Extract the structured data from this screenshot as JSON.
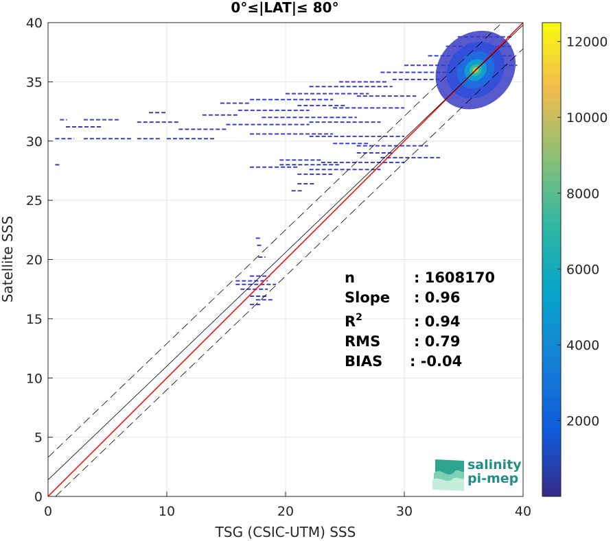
{
  "chart_data": {
    "type": "heatmap",
    "title": "0°≤|LAT|≤ 80°",
    "xlabel": "TSG (CSIC-UTM) SSS",
    "ylabel": "Satellite SSS",
    "xlim": [
      0,
      40
    ],
    "ylim": [
      0,
      40
    ],
    "xticks": [
      "0",
      "10",
      "20",
      "30",
      "40"
    ],
    "yticks": [
      "0",
      "5",
      "10",
      "15",
      "20",
      "25",
      "30",
      "35",
      "40"
    ],
    "grid": true,
    "colorbar": {
      "range": [
        0,
        12500
      ],
      "ticks": [
        "2000",
        "4000",
        "6000",
        "8000",
        "10000",
        "12000"
      ],
      "colormap": "parula"
    },
    "lines": [
      {
        "role": "one-to-one",
        "color": "#ff0000",
        "intercept": 0,
        "slope": 1
      },
      {
        "role": "regression",
        "color": "#000000",
        "intercept": 1.4,
        "slope": 0.96
      },
      {
        "role": "regression-plus",
        "color": "#000000",
        "dash": true,
        "intercept": 3.3,
        "slope": 0.96
      },
      {
        "role": "regression-minus",
        "color": "#000000",
        "dash": true,
        "intercept": -0.6,
        "slope": 0.96
      }
    ],
    "density_segments": [
      {
        "x": [
          1.0,
          1.6
        ],
        "y": 31.8
      },
      {
        "x": [
          3.0,
          6.0
        ],
        "y": 31.8
      },
      {
        "x": [
          7.5,
          11.0
        ],
        "y": 31.6
      },
      {
        "x": [
          1.5,
          4.5
        ],
        "y": 31.2
      },
      {
        "x": [
          11.0,
          15.0
        ],
        "y": 31.0
      },
      {
        "x": [
          13.0,
          16.0
        ],
        "y": 32.2
      },
      {
        "x": [
          8.5,
          10.0
        ],
        "y": 32.4
      },
      {
        "x": [
          16.0,
          22.0
        ],
        "y": 32.6
      },
      {
        "x": [
          14.5,
          17.0
        ],
        "y": 33.2
      },
      {
        "x": [
          17.0,
          24.0
        ],
        "y": 33.5
      },
      {
        "x": [
          20.0,
          27.0
        ],
        "y": 34.0
      },
      {
        "x": [
          22.0,
          29.0
        ],
        "y": 34.6
      },
      {
        "x": [
          24.5,
          28.5
        ],
        "y": 35.0
      },
      {
        "x": [
          21.0,
          25.0
        ],
        "y": 33.0
      },
      {
        "x": [
          15.0,
          22.0
        ],
        "y": 31.4
      },
      {
        "x": [
          18.0,
          26.0
        ],
        "y": 32.0
      },
      {
        "x": [
          24.0,
          30.0
        ],
        "y": 32.8
      },
      {
        "x": [
          22.0,
          28.0
        ],
        "y": 31.6
      },
      {
        "x": [
          26.0,
          31.0
        ],
        "y": 33.8
      },
      {
        "x": [
          0.6,
          2.2
        ],
        "y": 30.2
      },
      {
        "x": [
          3.0,
          7.0
        ],
        "y": 30.2
      },
      {
        "x": [
          7.5,
          9.5
        ],
        "y": 30.2
      },
      {
        "x": [
          10.0,
          14.0
        ],
        "y": 30.2
      },
      {
        "x": [
          17.0,
          24.0
        ],
        "y": 30.6
      },
      {
        "x": [
          22.0,
          30.0
        ],
        "y": 30.4
      },
      {
        "x": [
          24.0,
          27.0
        ],
        "y": 29.8
      },
      {
        "x": [
          26.0,
          32.0
        ],
        "y": 29.6
      },
      {
        "x": [
          26.0,
          29.0
        ],
        "y": 29.0
      },
      {
        "x": [
          28.0,
          33.0
        ],
        "y": 28.6
      },
      {
        "x": [
          19.5,
          23.0
        ],
        "y": 28.4
      },
      {
        "x": [
          19.5,
          24.5
        ],
        "y": 28.0
      },
      {
        "x": [
          23.0,
          30.0
        ],
        "y": 28.2
      },
      {
        "x": [
          17.0,
          21.0
        ],
        "y": 27.8
      },
      {
        "x": [
          22.0,
          28.0
        ],
        "y": 27.6
      },
      {
        "x": [
          21.0,
          24.0
        ],
        "y": 27.2
      },
      {
        "x": [
          21.0,
          22.5
        ],
        "y": 26.4
      },
      {
        "x": [
          20.5,
          21.5
        ],
        "y": 25.8
      },
      {
        "x": [
          0.6,
          1.0
        ],
        "y": 28.0
      },
      {
        "x": [
          17.5,
          18.0
        ],
        "y": 21.8
      },
      {
        "x": [
          17.6,
          18.1
        ],
        "y": 21.2
      },
      {
        "x": [
          17.7,
          18.3
        ],
        "y": 20.2
      },
      {
        "x": [
          17.0,
          18.7
        ],
        "y": 18.6
      },
      {
        "x": [
          15.8,
          18.5
        ],
        "y": 18.2
      },
      {
        "x": [
          15.8,
          19.2
        ],
        "y": 17.9
      },
      {
        "x": [
          16.2,
          18.5
        ],
        "y": 17.5
      },
      {
        "x": [
          17.0,
          18.5
        ],
        "y": 16.9
      },
      {
        "x": [
          17.5,
          18.9
        ],
        "y": 16.6
      },
      {
        "x": [
          17.0,
          18.0
        ],
        "y": 16.2
      },
      {
        "x": [
          28.0,
          36.0
        ],
        "y": 35.8
      },
      {
        "x": [
          30.0,
          39.5
        ],
        "y": 36.4
      },
      {
        "x": [
          32.0,
          39.0
        ],
        "y": 37.2
      },
      {
        "x": [
          33.5,
          39.0
        ],
        "y": 38.0
      },
      {
        "x": [
          34.5,
          39.0
        ],
        "y": 38.8
      },
      {
        "x": [
          29.0,
          33.0
        ],
        "y": 35.2
      }
    ],
    "density_cluster": {
      "center": [
        36.0,
        36.0
      ],
      "peak": 12500
    },
    "annotations": {
      "n_label": "n",
      "n_value": ": 1608170",
      "slope_label": "Slope",
      "slope_value": ": 0.96",
      "r2_label": "R",
      "r2_sup": "2",
      "r2_value": ": 0.94",
      "rms_label": "RMS",
      "rms_value": ": 0.79",
      "bias_label": "BIAS",
      "bias_value": ": -0.04"
    }
  },
  "logo": {
    "line1": "salinity",
    "line2": "pi-mep"
  }
}
